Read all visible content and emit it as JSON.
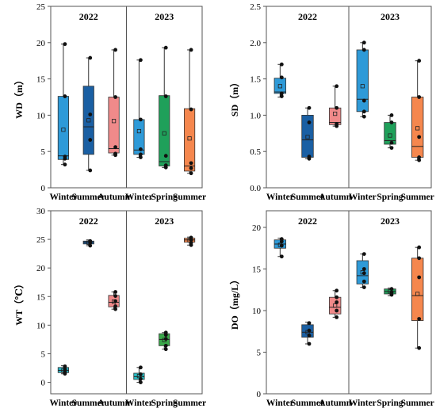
{
  "colors": {
    "winter": "#2e9ad8",
    "summer": "#1a5fa3",
    "autumn": "#f08a8a",
    "spring": "#1fa05a",
    "summer2023": "#f5874e",
    "wt_winter2022": "#2bb6c8",
    "wt_winter2023": "#27c0c7",
    "wt_spring": "#3aa84a",
    "frame": "#555555",
    "dot": "#111111"
  },
  "chart_data": [
    {
      "type": "box",
      "ylabel": "WD（m）",
      "ylim": [
        0,
        25
      ],
      "yticks": [
        "0",
        "5",
        "10",
        "15",
        "20",
        "25"
      ],
      "groups": [
        {
          "year": "2022",
          "categories": [
            "Winter",
            "Summer",
            "Autumn"
          ]
        },
        {
          "year": "2023",
          "categories": [
            "Winter",
            "Spring",
            "Summer"
          ]
        }
      ],
      "boxes": [
        {
          "category": "Winter",
          "year": "2022",
          "color_key": "winter",
          "min": 3.2,
          "q1": 3.9,
          "median": 4.4,
          "q3": 12.6,
          "max": 19.8,
          "mean": 8.0,
          "points": [
            3.2,
            4.0,
            4.3,
            12.6,
            19.8
          ]
        },
        {
          "category": "Summer",
          "year": "2022",
          "color_key": "summer",
          "min": 2.4,
          "q1": 4.6,
          "median": 8.4,
          "q3": 14.0,
          "max": 17.9,
          "mean": 9.3,
          "points": [
            2.4,
            6.6,
            10.1,
            17.9
          ]
        },
        {
          "category": "Autumn",
          "year": "2022",
          "color_key": "autumn",
          "min": 4.5,
          "q1": 4.8,
          "median": 5.4,
          "q3": 12.5,
          "max": 19.0,
          "mean": 9.2,
          "points": [
            4.5,
            4.7,
            5.6,
            12.5,
            19.0
          ]
        },
        {
          "category": "Winter",
          "year": "2023",
          "color_key": "winter",
          "min": 4.2,
          "q1": 4.6,
          "median": 5.2,
          "q3": 9.4,
          "max": 17.6,
          "mean": 7.8,
          "points": [
            4.2,
            4.6,
            5.3,
            9.4,
            17.6
          ]
        },
        {
          "category": "Spring",
          "year": "2023",
          "color_key": "spring",
          "min": 2.8,
          "q1": 3.0,
          "median": 3.6,
          "q3": 12.7,
          "max": 19.3,
          "mean": 7.5,
          "points": [
            2.8,
            3.1,
            4.4,
            12.6,
            19.3
          ]
        },
        {
          "category": "Summer",
          "year": "2023",
          "color_key": "summer2023",
          "min": 2.0,
          "q1": 2.3,
          "median": 3.0,
          "q3": 10.9,
          "max": 19.0,
          "mean": 6.8,
          "points": [
            2.0,
            2.7,
            3.4,
            10.8,
            19.0
          ]
        }
      ]
    },
    {
      "type": "box",
      "ylabel": "SD（m）",
      "ylim": [
        0,
        2.5
      ],
      "yticks": [
        "0.0",
        "0.5",
        "1.0",
        "1.5",
        "2.0",
        "2.5"
      ],
      "groups": [
        {
          "year": "2022",
          "categories": [
            "Winter",
            "Summer",
            "Autumn"
          ]
        },
        {
          "year": "2023",
          "categories": [
            "Winter",
            "Spring",
            "Summer"
          ]
        }
      ],
      "boxes": [
        {
          "category": "Winter",
          "year": "2022",
          "color_key": "winter",
          "min": 1.25,
          "q1": 1.3,
          "median": 1.32,
          "q3": 1.51,
          "max": 1.7,
          "mean": 1.4,
          "points": [
            1.26,
            1.3,
            1.52,
            1.7
          ]
        },
        {
          "category": "Summer",
          "year": "2022",
          "color_key": "summer",
          "min": 0.4,
          "q1": 0.42,
          "median": 0.66,
          "q3": 1.0,
          "max": 1.1,
          "mean": 0.7,
          "points": [
            0.4,
            0.43,
            0.9,
            1.1
          ]
        },
        {
          "category": "Autumn",
          "year": "2022",
          "color_key": "autumn",
          "min": 0.85,
          "q1": 0.87,
          "median": 0.9,
          "q3": 1.1,
          "max": 1.4,
          "mean": 1.02,
          "points": [
            0.85,
            0.88,
            1.1,
            1.4
          ]
        },
        {
          "category": "Winter",
          "year": "2023",
          "color_key": "winter",
          "min": 0.98,
          "q1": 1.05,
          "median": 1.22,
          "q3": 1.9,
          "max": 2.0,
          "mean": 1.4,
          "points": [
            0.98,
            1.05,
            1.2,
            1.9,
            2.0
          ]
        },
        {
          "category": "Spring",
          "year": "2023",
          "color_key": "spring",
          "min": 0.55,
          "q1": 0.6,
          "median": 0.65,
          "q3": 0.9,
          "max": 1.0,
          "mean": 0.72,
          "points": [
            0.55,
            0.62,
            0.9,
            1.0
          ]
        },
        {
          "category": "Summer",
          "year": "2023",
          "color_key": "summer2023",
          "min": 0.38,
          "q1": 0.42,
          "median": 0.57,
          "q3": 1.25,
          "max": 1.75,
          "mean": 0.82,
          "points": [
            0.38,
            0.42,
            0.7,
            1.25,
            1.75
          ]
        }
      ]
    },
    {
      "type": "box",
      "ylabel": "WT（℃）",
      "ylim": [
        -2,
        30
      ],
      "yticks": [
        "0",
        "5",
        "10",
        "15",
        "20",
        "25",
        "30"
      ],
      "tick_values": [
        0,
        5,
        10,
        15,
        20,
        25,
        30
      ],
      "groups": [
        {
          "year": "2022",
          "categories": [
            "Winter",
            "Summer",
            "Autumn"
          ]
        },
        {
          "year": "2023",
          "categories": [
            "Winter",
            "Spring",
            "Summer"
          ]
        }
      ],
      "boxes": [
        {
          "category": "Winter",
          "year": "2022",
          "color_key": "wt_winter2022",
          "min": 1.5,
          "q1": 1.7,
          "median": 2.1,
          "q3": 2.6,
          "max": 2.9,
          "mean": 2.1,
          "points": [
            1.5,
            1.8,
            2.3,
            2.8
          ]
        },
        {
          "category": "Summer",
          "year": "2022",
          "color_key": "summer",
          "min": 23.9,
          "q1": 24.2,
          "median": 24.5,
          "q3": 24.7,
          "max": 24.9,
          "mean": 24.4,
          "points": [
            23.9,
            24.4,
            24.7
          ]
        },
        {
          "category": "Autumn",
          "year": "2022",
          "color_key": "autumn",
          "min": 12.8,
          "q1": 13.2,
          "median": 14.0,
          "q3": 15.2,
          "max": 15.8,
          "mean": 14.1,
          "points": [
            12.8,
            13.3,
            14.2,
            15.1,
            15.8
          ]
        },
        {
          "category": "Winter",
          "year": "2023",
          "color_key": "wt_winter2023",
          "min": 0.0,
          "q1": 0.5,
          "median": 1.0,
          "q3": 1.6,
          "max": 2.6,
          "mean": 1.1,
          "points": [
            0.0,
            0.6,
            1.4,
            2.6
          ]
        },
        {
          "category": "Spring",
          "year": "2023",
          "color_key": "wt_spring",
          "min": 5.8,
          "q1": 6.4,
          "median": 7.5,
          "q3": 8.5,
          "max": 8.7,
          "mean": 7.4,
          "points": [
            5.8,
            6.4,
            7.6,
            8.3,
            8.7
          ]
        },
        {
          "category": "Summer",
          "year": "2023",
          "color_key": "summer2023",
          "min": 24.0,
          "q1": 24.5,
          "median": 24.9,
          "q3": 25.2,
          "max": 25.4,
          "mean": 24.8,
          "points": [
            24.0,
            24.4,
            24.9,
            25.3
          ]
        }
      ]
    },
    {
      "type": "box",
      "ylabel": "DO（mg/L）",
      "ylim": [
        0,
        22
      ],
      "yticks": [
        "0",
        "5",
        "10",
        "15",
        "20"
      ],
      "tick_values": [
        0,
        5,
        10,
        15,
        20
      ],
      "groups": [
        {
          "year": "2022",
          "categories": [
            "Winter",
            "Summer",
            "Autumn"
          ]
        },
        {
          "year": "2023",
          "categories": [
            "Winter",
            "Spring",
            "Summer"
          ]
        }
      ],
      "boxes": [
        {
          "category": "Winter",
          "year": "2022",
          "color_key": "winter",
          "min": 16.5,
          "q1": 17.5,
          "median": 18.0,
          "q3": 18.5,
          "max": 18.7,
          "mean": 17.9,
          "points": [
            16.5,
            17.8,
            18.3,
            18.6
          ]
        },
        {
          "category": "Summer",
          "year": "2022",
          "color_key": "summer",
          "min": 6.0,
          "q1": 6.8,
          "median": 7.4,
          "q3": 8.3,
          "max": 8.6,
          "mean": 7.4,
          "points": [
            6.0,
            7.0,
            7.6,
            8.5
          ]
        },
        {
          "category": "Autumn",
          "year": "2022",
          "color_key": "autumn",
          "min": 9.2,
          "q1": 9.6,
          "median": 10.4,
          "q3": 11.6,
          "max": 12.4,
          "mean": 10.6,
          "points": [
            9.2,
            10.0,
            11.0,
            11.6,
            12.4
          ]
        },
        {
          "category": "Winter",
          "year": "2023",
          "color_key": "winter",
          "min": 12.8,
          "q1": 13.2,
          "median": 14.2,
          "q3": 16.0,
          "max": 16.8,
          "mean": 14.6,
          "points": [
            12.8,
            13.5,
            14.5,
            15.0,
            16.8
          ]
        },
        {
          "category": "Spring",
          "year": "2023",
          "color_key": "spring",
          "min": 11.8,
          "q1": 12.0,
          "median": 12.3,
          "q3": 12.6,
          "max": 12.7,
          "mean": 12.3,
          "points": [
            11.9,
            12.2,
            12.6
          ]
        },
        {
          "category": "Summer",
          "year": "2023",
          "color_key": "summer2023",
          "min": 5.5,
          "q1": 8.8,
          "median": 11.8,
          "q3": 16.3,
          "max": 17.6,
          "mean": 12.0,
          "points": [
            5.5,
            9.0,
            14.0,
            16.3,
            17.6
          ]
        }
      ]
    }
  ]
}
